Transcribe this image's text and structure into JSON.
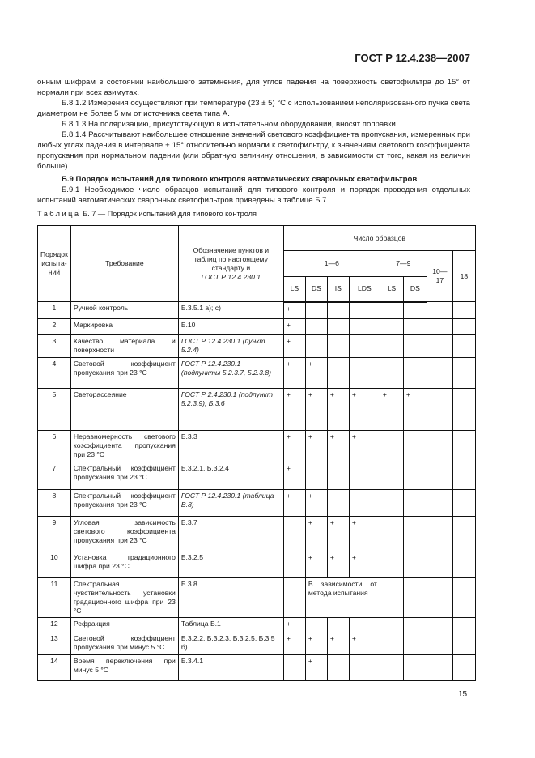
{
  "header": {
    "doc_id": "ГОСТ Р 12.4.238—2007"
  },
  "paragraphs": [
    {
      "text": "онным шифрам в состоянии наибольшего затемнения, для углов падения на поверхность светофильтра до 15° от нормали при всех азимутах.",
      "indent": false
    },
    {
      "text": "Б.8.1.2  Измерения осуществляют при температуре (23 ± 5) °С с использованием неполяризованного пучка света диаметром не более 5 мм от источника света типа А.",
      "indent": true
    },
    {
      "text": "Б.8.1.3  На поляризацию, присутствующую в испытательном оборудовании, вносят поправки.",
      "indent": true
    },
    {
      "text": "Б.8.1.4  Рассчитывают наибольшее отношение значений светового коэффициента пропускания, измеренных при любых углах падения в интервале ± 15° относительно нормали к светофильтру, к значениям светового коэффициента пропускания при нормальном падении (или обратную величину отношения, в зависимости от того, какая из величин больше).",
      "indent": true
    },
    {
      "text": "Б.9  Порядок испытаний для типового контроля автоматических сварочных светофильтров",
      "indent": true,
      "heading": true
    },
    {
      "text": "Б.9.1  Необходимое число образцов испытаний для типового контроля и порядок проведения отдельных испытаний автоматических сварочных светофильтров приведены в таблице Б.7.",
      "indent": true
    }
  ],
  "table": {
    "caption_label": "Таблица",
    "caption_text": "Б. 7 — Порядок испытаний для типового контроля",
    "headers": {
      "order": "Порядок испыта-ний",
      "requirement": "Требование",
      "reference": "Обозначение пунктов и таблиц по настоящему стандарту и",
      "reference_italic": "ГОСТ Р 12.4.230.1",
      "samples": "Число образцов",
      "group1": "1—6",
      "group2": "7—9",
      "group3": "10—17",
      "group4": "18",
      "sub": [
        "LS",
        "DS",
        "IS",
        "LDS",
        "LS",
        "DS"
      ]
    },
    "rows": [
      {
        "n": "1",
        "req": "Ручной контроль",
        "ref": "Б.3.5.1 а); с)",
        "ital": false,
        "marks": [
          "+",
          "",
          "",
          "",
          "",
          "",
          "",
          ""
        ]
      },
      {
        "n": "2",
        "req": "Маркировка",
        "ref": "Б.10",
        "ital": false,
        "marks": [
          "+",
          "",
          "",
          "",
          "",
          "",
          "",
          ""
        ]
      },
      {
        "n": "3",
        "req": "Качество материала и поверхности",
        "ref": "ГОСТ Р 12.4.230.1 (пункт 5.2.4)",
        "ital": true,
        "marks": [
          "+",
          "",
          "",
          "",
          "",
          "",
          "",
          ""
        ]
      },
      {
        "n": "4",
        "req": "Световой коэффициент пропускания при 23 °С",
        "ref": "ГОСТ Р 12.4.230.1 (подпункты 5.2.3.7, 5.2.3.8)",
        "ital": true,
        "marks": [
          "+",
          "+",
          "",
          "",
          "",
          "",
          "",
          ""
        ]
      },
      {
        "n": "5",
        "req": "Светорассеяние",
        "ref": "ГОСТ Р 2.4.230.1 (подпункт 5.2.3.9), Б.3.6",
        "ital": true,
        "marks": [
          "+",
          "+",
          "+",
          "+",
          "+",
          "+",
          "",
          ""
        ]
      },
      {
        "n": "6",
        "req": "Неравномерность светового коэффициента пропускания при 23 °С",
        "ref": "Б.3.3",
        "ital": false,
        "marks": [
          "+",
          "+",
          "+",
          "+",
          "",
          "",
          "",
          ""
        ]
      },
      {
        "n": "7",
        "req": "Спектральный коэффициент пропускания при 23 °С",
        "ref": "Б.3.2.1, Б.3.2.4",
        "ital": false,
        "marks": [
          "+",
          "",
          "",
          "",
          "",
          "",
          "",
          ""
        ]
      },
      {
        "n": "8",
        "req": "Спектральный коэффициент пропускания при 23 °С",
        "ref": "ГОСТ Р 12.4.230.1 (таблица В.8)",
        "ital": true,
        "marks": [
          "+",
          "+",
          "",
          "",
          "",
          "",
          "",
          ""
        ]
      },
      {
        "n": "9",
        "req": "Угловая зависимость светового коэффициента пропускания при 23 °С",
        "ref": "Б.3.7",
        "ital": false,
        "marks": [
          "",
          "+",
          "+",
          "+",
          "",
          "",
          "",
          ""
        ]
      },
      {
        "n": "10",
        "req": "Установка градационного шифра при 23 °С",
        "ref": "Б.3.2.5",
        "ital": false,
        "marks": [
          "",
          "+",
          "+",
          "+",
          "",
          "",
          "",
          ""
        ]
      },
      {
        "n": "11",
        "req": "Спектральная чувствительность установки градационного шифра при 23 °С",
        "ref": "Б.3.8",
        "ital": false,
        "marks": [
          "",
          "",
          "",
          "",
          "",
          "",
          "",
          ""
        ],
        "span_text": "В зависимости от метода испытания"
      },
      {
        "n": "12",
        "req": "Рефракция",
        "ref": "Таблица Б.1",
        "ital": false,
        "marks": [
          "+",
          "",
          "",
          "",
          "",
          "",
          "",
          ""
        ]
      },
      {
        "n": "13",
        "req": "Световой коэффициент пропускания при минус 5 °С",
        "ref": "Б.3.2.2, Б.3.2.3, Б.3.2.5, Б.3.5 б)",
        "ital": false,
        "marks": [
          "+",
          "+",
          "+",
          "+",
          "",
          "",
          "",
          ""
        ]
      },
      {
        "n": "14",
        "req": "Время переключения при минус 5 °С",
        "ref": "Б.3.4.1",
        "ital": false,
        "marks": [
          "",
          "+",
          "",
          "",
          "",
          "",
          "",
          ""
        ]
      }
    ]
  },
  "footer": {
    "page_number": "15"
  }
}
